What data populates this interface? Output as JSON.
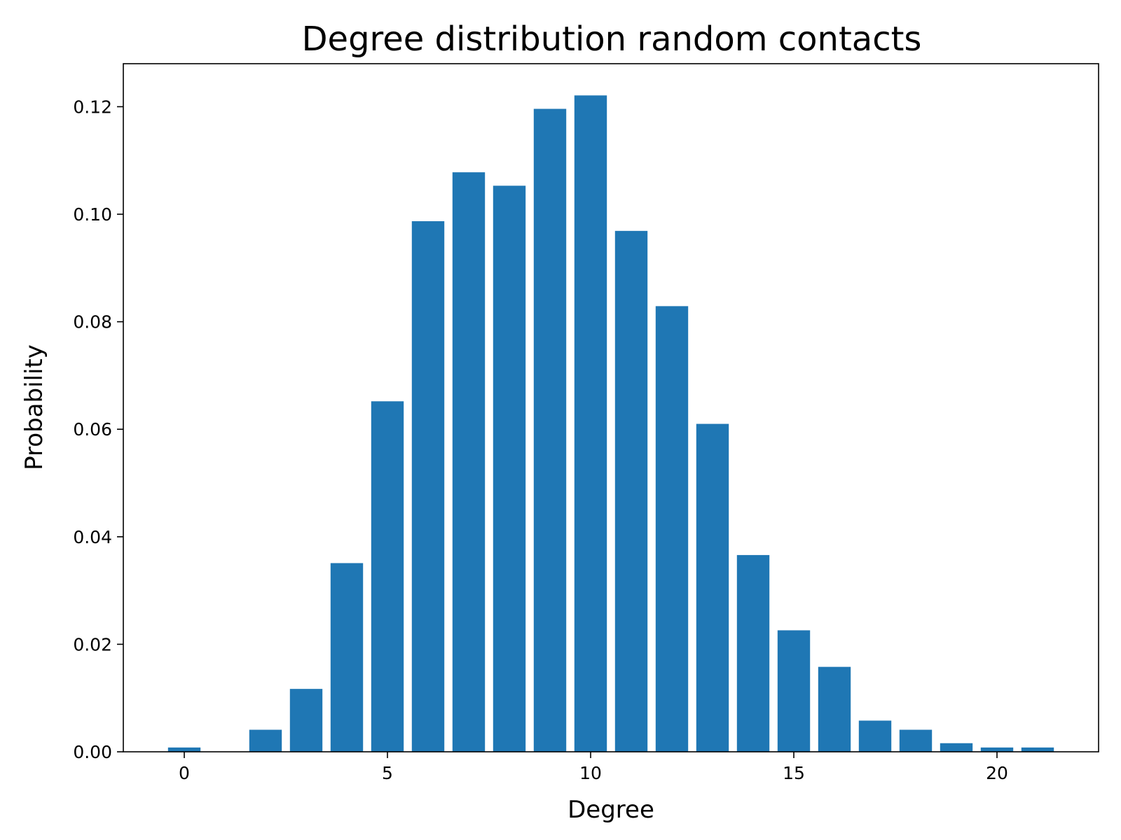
{
  "chart_data": {
    "type": "bar",
    "title": "Degree distribution random contacts",
    "xlabel": "Degree",
    "ylabel": "Probability",
    "x": [
      0,
      2,
      3,
      4,
      5,
      6,
      7,
      8,
      9,
      10,
      11,
      12,
      13,
      14,
      15,
      16,
      17,
      18,
      19,
      20,
      21
    ],
    "values": [
      0.0008,
      0.0041,
      0.0117,
      0.0351,
      0.0652,
      0.0987,
      0.1078,
      0.1053,
      0.1196,
      0.1221,
      0.0969,
      0.0829,
      0.061,
      0.0366,
      0.0226,
      0.0158,
      0.0058,
      0.0041,
      0.0016,
      0.0008,
      0.0008
    ],
    "xlim": [
      -1.5,
      22.5
    ],
    "ylim": [
      0,
      0.128
    ],
    "xticks": [
      0,
      5,
      10,
      15,
      20
    ],
    "xtick_labels": [
      "0",
      "5",
      "10",
      "15",
      "20"
    ],
    "yticks": [
      0,
      0.02,
      0.04,
      0.06,
      0.08,
      0.1,
      0.12
    ],
    "ytick_labels": [
      "0.00",
      "0.02",
      "0.04",
      "0.06",
      "0.08",
      "0.10",
      "0.12"
    ],
    "bar_width": 0.8,
    "grid": false,
    "colors": {
      "bar": "#1f77b4"
    }
  }
}
